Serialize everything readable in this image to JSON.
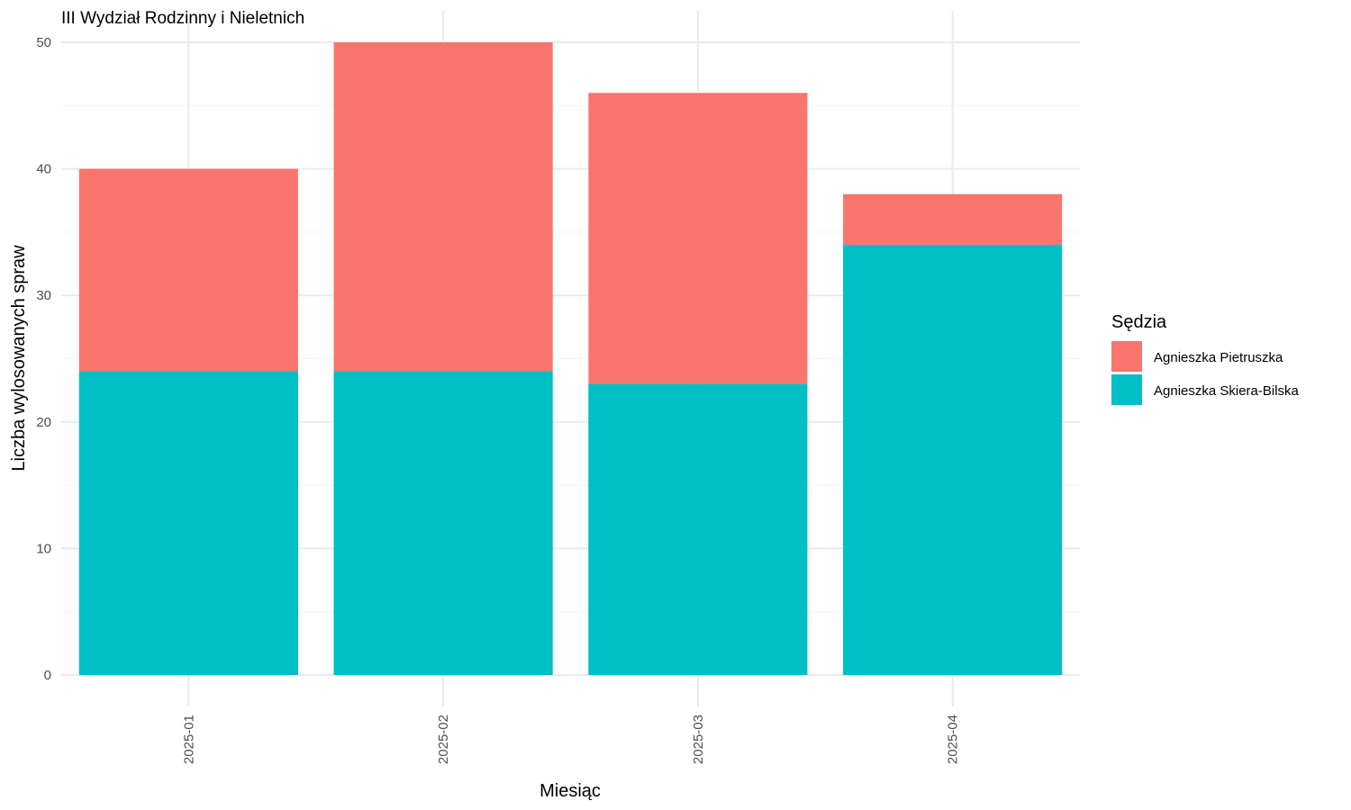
{
  "chart_data": {
    "type": "bar",
    "stacked": true,
    "title": "III Wydział Rodzinny i Nieletnich",
    "xlabel": "Miesiąc",
    "ylabel": "Liczba wylosowanych spraw",
    "categories": [
      "2025-01",
      "2025-02",
      "2025-03",
      "2025-04"
    ],
    "y_ticks": [
      "0",
      "10",
      "20",
      "30",
      "40",
      "50"
    ],
    "ylim": [
      0,
      50
    ],
    "grid": true,
    "x_tick_rotation": "vertical",
    "legend": {
      "title": "Sędzia",
      "placement": "right"
    },
    "series": [
      {
        "name": "Agnieszka Skiera-Bilska",
        "color": "#00BFC4",
        "values": [
          24,
          24,
          23,
          34
        ]
      },
      {
        "name": "Agnieszka Pietruszka",
        "color": "#F8766D",
        "values": [
          16,
          26,
          23,
          4
        ]
      }
    ],
    "legend_order": [
      1,
      0
    ]
  }
}
